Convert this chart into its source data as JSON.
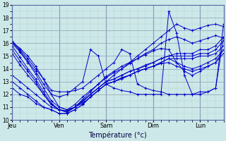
{
  "xlabel": "Température (°c)",
  "ylim": [
    10,
    19
  ],
  "yticks": [
    10,
    11,
    12,
    13,
    14,
    15,
    16,
    17,
    18,
    19
  ],
  "day_labels": [
    "Jeu",
    "Ven",
    "Sam",
    "Dim",
    "Lun"
  ],
  "day_positions": [
    0,
    6,
    12,
    18,
    24
  ],
  "total_steps": 28,
  "bg_color": "#cce8e8",
  "line_color": "#0000cc",
  "grid_major_color": "#99aabb",
  "grid_minor_color": "#bbcccc",
  "series": [
    [
      16.1,
      15.6,
      15.0,
      14.2,
      13.2,
      12.0,
      11.0,
      10.8,
      11.0,
      11.5,
      12.0,
      12.5,
      13.0,
      13.5,
      14.0,
      14.5,
      15.0,
      15.5,
      16.0,
      16.5,
      17.0,
      17.5,
      17.2,
      17.0,
      17.2,
      17.4,
      17.5,
      17.3
    ],
    [
      16.0,
      15.3,
      14.5,
      13.6,
      12.5,
      11.5,
      11.0,
      10.8,
      11.2,
      11.8,
      12.3,
      12.8,
      13.3,
      13.7,
      14.0,
      14.4,
      14.8,
      15.2,
      15.5,
      16.0,
      16.3,
      16.5,
      16.3,
      16.0,
      16.2,
      16.4,
      16.6,
      16.4
    ],
    [
      15.8,
      14.9,
      14.0,
      13.2,
      12.2,
      11.3,
      10.8,
      10.7,
      11.0,
      11.6,
      12.2,
      12.8,
      13.4,
      13.8,
      14.2,
      14.5,
      14.8,
      15.1,
      15.4,
      15.6,
      15.5,
      14.5,
      13.8,
      13.5,
      13.8,
      14.2,
      14.5,
      15.5
    ],
    [
      15.5,
      14.6,
      13.8,
      13.0,
      12.0,
      11.2,
      10.8,
      10.7,
      11.0,
      11.5,
      12.0,
      12.5,
      13.0,
      13.2,
      13.5,
      13.8,
      14.0,
      14.3,
      14.5,
      14.8,
      15.0,
      15.2,
      15.2,
      15.2,
      15.5,
      15.5,
      15.8,
      16.5
    ],
    [
      15.2,
      14.3,
      13.5,
      12.8,
      12.0,
      11.2,
      10.8,
      10.6,
      11.0,
      11.4,
      12.0,
      12.5,
      13.0,
      13.2,
      13.5,
      13.8,
      14.0,
      14.2,
      14.5,
      14.8,
      15.0,
      15.0,
      15.0,
      15.0,
      15.2,
      15.2,
      15.5,
      16.2
    ],
    [
      13.5,
      13.0,
      12.5,
      12.0,
      11.5,
      11.0,
      10.8,
      10.6,
      11.0,
      11.3,
      11.8,
      12.3,
      12.8,
      13.0,
      13.3,
      13.5,
      13.8,
      14.0,
      14.2,
      14.5,
      14.8,
      14.8,
      14.8,
      14.8,
      15.0,
      15.0,
      15.2,
      15.8
    ],
    [
      13.0,
      12.5,
      12.0,
      11.5,
      11.0,
      10.8,
      10.5,
      10.5,
      10.8,
      11.2,
      11.8,
      12.3,
      12.8,
      13.0,
      13.2,
      13.5,
      13.8,
      14.0,
      14.2,
      14.5,
      14.8,
      14.5,
      14.2,
      14.0,
      14.2,
      14.5,
      14.8,
      15.5
    ],
    [
      12.5,
      12.0,
      11.8,
      11.3,
      11.0,
      10.8,
      10.5,
      10.5,
      10.8,
      11.2,
      11.8,
      12.3,
      12.8,
      13.0,
      13.3,
      13.5,
      13.8,
      14.0,
      14.2,
      14.4,
      14.5,
      14.2,
      14.0,
      13.8,
      14.0,
      14.2,
      14.5,
      15.2
    ],
    [
      16.2,
      15.5,
      14.8,
      14.0,
      13.2,
      12.3,
      12.2,
      12.2,
      12.3,
      12.5,
      13.0,
      13.5,
      14.0,
      14.5,
      15.5,
      15.2,
      12.8,
      12.5,
      12.3,
      12.2,
      12.0,
      12.0,
      12.0,
      12.0,
      12.2,
      12.2,
      12.5,
      16.5
    ],
    [
      16.1,
      15.4,
      14.6,
      13.8,
      12.8,
      12.0,
      11.8,
      12.0,
      12.5,
      13.0,
      15.5,
      15.0,
      12.8,
      12.5,
      12.3,
      12.2,
      12.0,
      12.0,
      12.0,
      12.0,
      18.5,
      16.8,
      13.5,
      12.0,
      12.0,
      12.2,
      12.5,
      17.5
    ]
  ]
}
